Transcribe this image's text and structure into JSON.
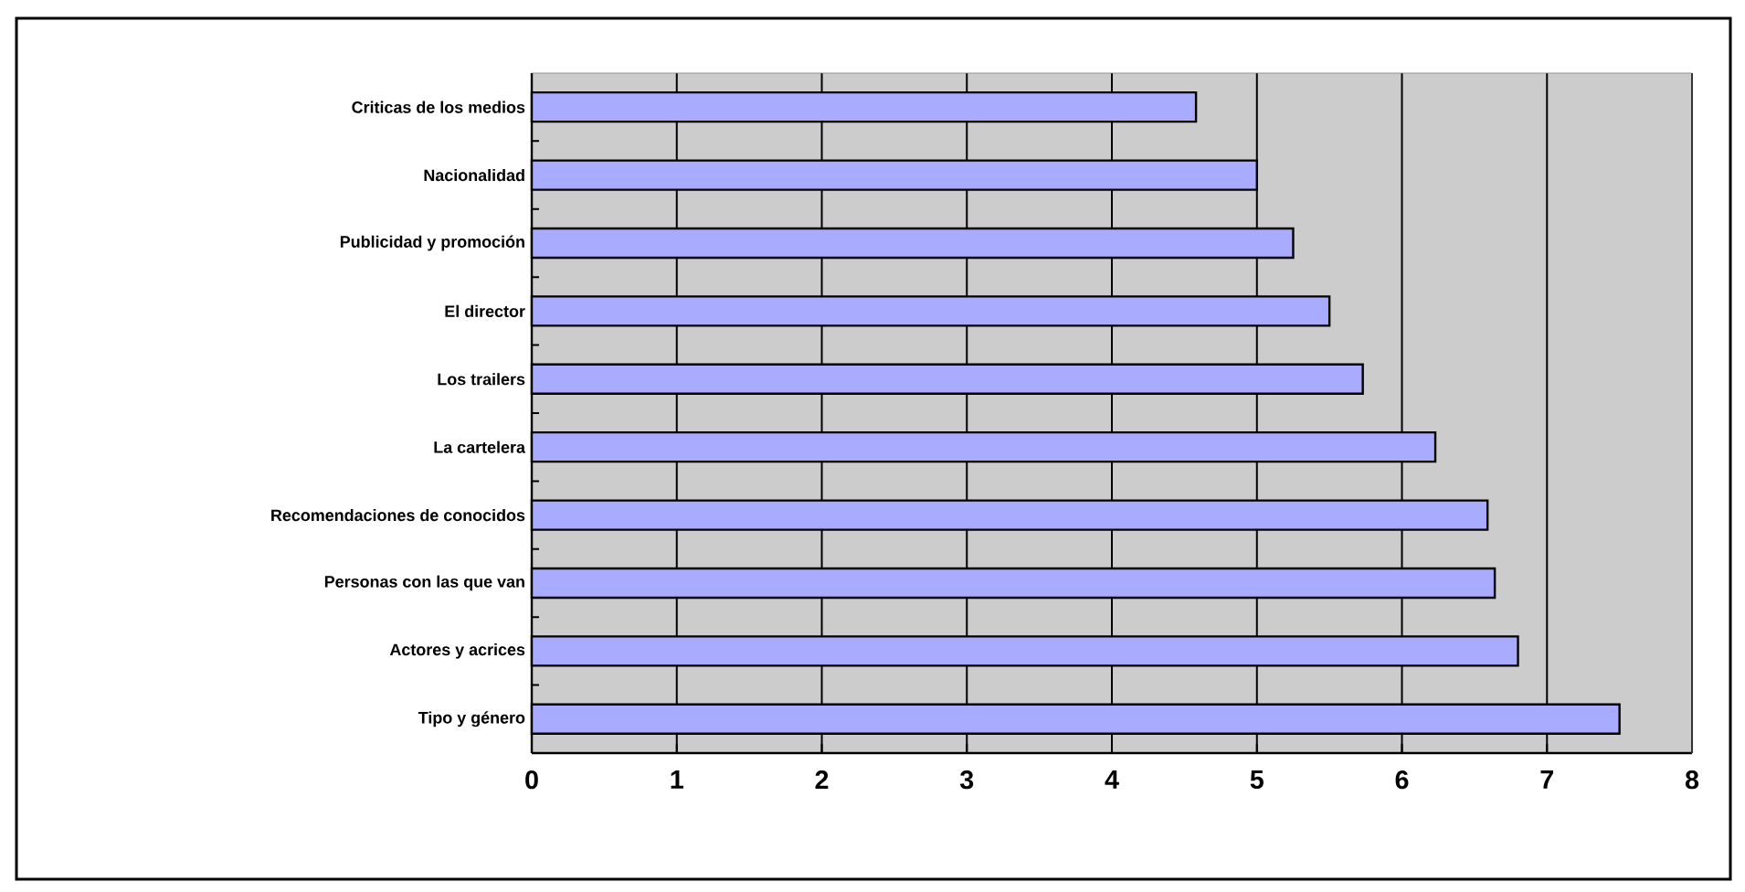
{
  "chart_data": {
    "type": "bar",
    "orientation": "horizontal",
    "categories": [
      "Criticas de los medios",
      "Nacionalidad",
      "Publicidad y promoción",
      "El director",
      "Los trailers",
      "La cartelera",
      "Recomendaciones de conocidos",
      "Personas con las que van",
      "Actores y acrices",
      "Tipo y género"
    ],
    "values": [
      4.58,
      5.0,
      5.25,
      5.5,
      5.73,
      6.23,
      6.59,
      6.64,
      6.8,
      7.5
    ],
    "color": "#a9abff",
    "xlim": [
      0,
      8
    ],
    "xticks": [
      0,
      1,
      2,
      3,
      4,
      5,
      6,
      7,
      8
    ],
    "grid": "x"
  }
}
